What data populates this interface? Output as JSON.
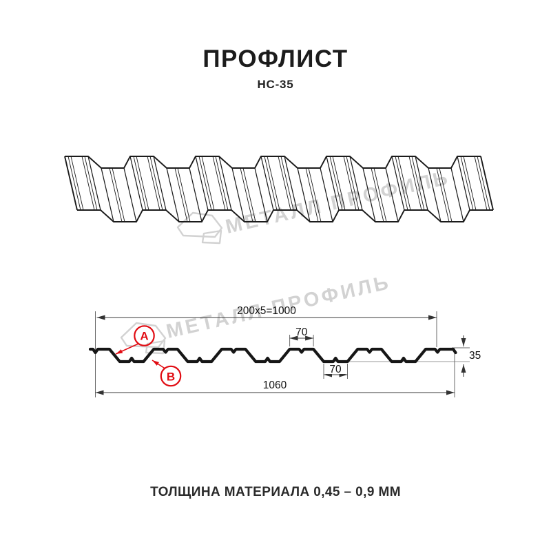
{
  "header": {
    "title": "ПРОФЛИСТ",
    "subtitle": "НС-35"
  },
  "watermark": {
    "text": "МЕТАЛЛ ПРОФИЛЬ",
    "color": "#d2d2d2"
  },
  "section": {
    "dim_top": "200x5=1000",
    "dim_crest": "70",
    "dim_valley": "70",
    "dim_height": "35",
    "dim_overall": "1060",
    "label_a": "A",
    "label_b": "B",
    "accent": "#e10b12",
    "line_color": "#161616"
  },
  "footer": {
    "note": "ТОЛЩИНА МАТЕРИАЛА 0,45 – 0,9 ММ"
  }
}
